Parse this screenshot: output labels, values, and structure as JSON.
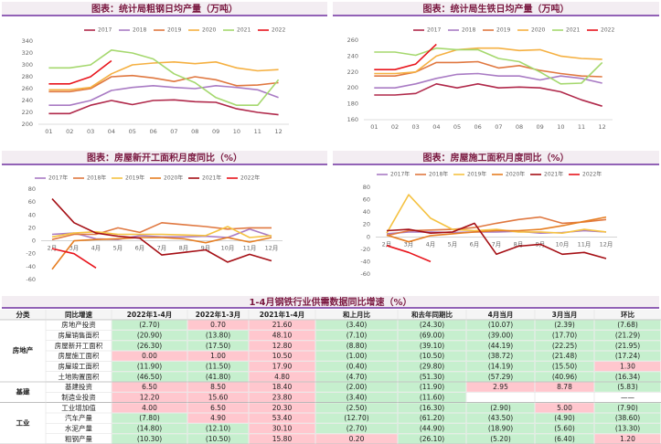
{
  "chart_data": [
    {
      "type": "line",
      "title": "图表：统计局粗钢日均产量（万吨）",
      "categories": [
        "01",
        "02",
        "03",
        "04",
        "05",
        "06",
        "07",
        "08",
        "09",
        "10",
        "11",
        "12"
      ],
      "ylim": [
        200,
        340
      ],
      "yticks": [
        200,
        220,
        240,
        260,
        280,
        300,
        320,
        340
      ],
      "series": [
        {
          "name": "2017",
          "color": "#b0284a",
          "values": [
            218,
            218,
            232,
            240,
            233,
            240,
            241,
            238,
            237,
            226,
            220,
            216
          ]
        },
        {
          "name": "2018",
          "color": "#a97bc4",
          "values": [
            232,
            232,
            240,
            257,
            262,
            265,
            262,
            260,
            265,
            262,
            258,
            245
          ]
        },
        {
          "name": "2019",
          "color": "#e07840",
          "values": [
            255,
            255,
            260,
            280,
            282,
            278,
            272,
            280,
            275,
            265,
            266,
            270
          ]
        },
        {
          "name": "2020",
          "color": "#f5b041",
          "values": [
            258,
            258,
            262,
            285,
            300,
            303,
            305,
            302,
            305,
            295,
            290,
            292
          ]
        },
        {
          "name": "2021",
          "color": "#a5d86e",
          "values": [
            295,
            295,
            300,
            325,
            320,
            310,
            285,
            270,
            245,
            232,
            232,
            275
          ]
        },
        {
          "name": "2022",
          "color": "#e8141c",
          "values": [
            268,
            268,
            280,
            307,
            null,
            null,
            null,
            null,
            null,
            null,
            null,
            null
          ]
        }
      ]
    },
    {
      "type": "line",
      "title": "图表：统计局生铁日均产量（万吨）",
      "categories": [
        "01",
        "02",
        "03",
        "04",
        "05",
        "06",
        "07",
        "08",
        "09",
        "10",
        "11",
        "12"
      ],
      "ylim": [
        160,
        260
      ],
      "yticks": [
        160,
        180,
        200,
        220,
        240,
        260
      ],
      "series": [
        {
          "name": "2017",
          "color": "#b0284a",
          "values": [
            191,
            191,
            193,
            205,
            200,
            205,
            200,
            201,
            200,
            195,
            185,
            177
          ]
        },
        {
          "name": "2018",
          "color": "#a97bc4",
          "values": [
            200,
            200,
            205,
            212,
            217,
            218,
            215,
            215,
            210,
            215,
            212,
            206
          ]
        },
        {
          "name": "2019",
          "color": "#e07840",
          "values": [
            215,
            215,
            220,
            232,
            232,
            233,
            225,
            228,
            222,
            218,
            215,
            214
          ]
        },
        {
          "name": "2020",
          "color": "#f5b041",
          "values": [
            218,
            218,
            220,
            240,
            248,
            250,
            250,
            247,
            248,
            240,
            237,
            236
          ]
        },
        {
          "name": "2021",
          "color": "#a5d86e",
          "values": [
            245,
            245,
            241,
            250,
            248,
            248,
            237,
            233,
            220,
            205,
            206,
            232
          ]
        },
        {
          "name": "2022",
          "color": "#e8141c",
          "values": [
            223,
            223,
            230,
            255,
            null,
            null,
            null,
            null,
            null,
            null,
            null,
            null
          ]
        }
      ]
    },
    {
      "type": "line",
      "title": "图表：房屋新开工面积月度同比（%）",
      "categories": [
        "2月",
        "3月",
        "4月",
        "5月",
        "6月",
        "7月",
        "8月",
        "9月",
        "10月",
        "11月",
        "12月"
      ],
      "ylim": [
        -60,
        80
      ],
      "yticks": [
        -60,
        -40,
        -20,
        0,
        20,
        40,
        60,
        80
      ],
      "series": [
        {
          "name": "2017年",
          "color": "#a97bc4",
          "values": [
            10,
            12,
            3,
            2,
            8,
            6,
            6,
            7,
            5,
            18,
            7
          ]
        },
        {
          "name": "2018年",
          "color": "#e07840",
          "values": [
            2,
            10,
            10,
            20,
            13,
            28,
            25,
            22,
            18,
            20,
            20
          ]
        },
        {
          "name": "2019年",
          "color": "#f5c242",
          "values": [
            6,
            12,
            14,
            10,
            10,
            10,
            9,
            8,
            22,
            5,
            8
          ]
        },
        {
          "name": "2020年",
          "color": "#e67e22",
          "values": [
            -44,
            0,
            2,
            3,
            5,
            5,
            3,
            -3,
            5,
            -2,
            5
          ]
        },
        {
          "name": "2021年",
          "color": "#a50f15",
          "values": [
            65,
            28,
            12,
            7,
            4,
            -22,
            -18,
            -14,
            -33,
            -21,
            -31
          ]
        },
        {
          "name": "2022年",
          "color": "#e8141c",
          "values": [
            -12,
            -20,
            -42,
            null,
            null,
            null,
            null,
            null,
            null,
            null,
            null
          ]
        }
      ]
    },
    {
      "type": "line",
      "title": "图表：房屋施工面积月度同比（%）",
      "categories": [
        "2月",
        "3月",
        "4月",
        "5月",
        "6月",
        "7月",
        "8月",
        "9月",
        "10月",
        "11月",
        "12月"
      ],
      "ylim": [
        -60,
        80
      ],
      "yticks": [
        -60,
        -40,
        -20,
        0,
        20,
        40,
        60,
        80
      ],
      "series": [
        {
          "name": "2017年",
          "color": "#a97bc4",
          "values": [
            5,
            8,
            8,
            7,
            8,
            8,
            9,
            6,
            7,
            10,
            8
          ]
        },
        {
          "name": "2018年",
          "color": "#e07840",
          "values": [
            2,
            10,
            11,
            12,
            15,
            22,
            28,
            32,
            22,
            24,
            28
          ]
        },
        {
          "name": "2019年",
          "color": "#f5c242",
          "values": [
            6,
            68,
            30,
            12,
            10,
            12,
            8,
            8,
            6,
            12,
            8
          ]
        },
        {
          "name": "2020年",
          "color": "#e67e22",
          "values": [
            3,
            -8,
            2,
            5,
            8,
            10,
            10,
            12,
            18,
            25,
            32
          ]
        },
        {
          "name": "2021年",
          "color": "#a50f15",
          "values": [
            10,
            12,
            6,
            8,
            22,
            -28,
            -15,
            -12,
            -28,
            -25,
            -35
          ]
        },
        {
          "name": "2022年",
          "color": "#e8141c",
          "values": [
            -14,
            -25,
            -40,
            null,
            null,
            null,
            null,
            null,
            null,
            null,
            null
          ]
        }
      ]
    }
  ],
  "table": {
    "title": "1-4月钢铁行业供需数据同比增速（%）",
    "header": [
      "分类",
      "同比增速",
      "2022年1-4月",
      "2022年1-3月",
      "2021年1-4月",
      "和上月比",
      "和去年同期比",
      "4月当月",
      "3月当月",
      "环比"
    ],
    "groups": [
      {
        "name": "房地产",
        "rows": [
          [
            "房地产投资",
            "(2.70)",
            "0.70",
            "21.60",
            "(3.40)",
            "(24.30)",
            "(10.07)",
            "(2.39)",
            "(7.68)"
          ],
          [
            "房屋销售面积",
            "(20.90)",
            "(13.80)",
            "48.10",
            "(7.10)",
            "(69.00)",
            "(39.00)",
            "(17.70)",
            "(21.29)"
          ],
          [
            "房屋新开工面积",
            "(26.30)",
            "(17.50)",
            "12.80",
            "(8.80)",
            "(39.10)",
            "(44.19)",
            "(22.25)",
            "(21.95)"
          ],
          [
            "房屋施工面积",
            "0.00",
            "1.00",
            "10.50",
            "(1.00)",
            "(10.50)",
            "(38.72)",
            "(21.48)",
            "(17.24)"
          ],
          [
            "房屋竣工面积",
            "(11.90)",
            "(11.50)",
            "17.90",
            "(0.40)",
            "(29.80)",
            "(14.19)",
            "(15.50)",
            "1.30"
          ],
          [
            "土地购置面积",
            "(46.50)",
            "(41.80)",
            "4.80",
            "(4.70)",
            "(51.30)",
            "(57.29)",
            "(40.96)",
            "(16.34)"
          ]
        ]
      },
      {
        "name": "基建",
        "rows": [
          [
            "基建投资",
            "6.50",
            "8.50",
            "18.40",
            "(2.00)",
            "(11.90)",
            "2.95",
            "8.78",
            "(5.83)"
          ],
          [
            "制造业投资",
            "12.20",
            "15.60",
            "23.80",
            "(3.40)",
            "(11.60)",
            null,
            null,
            "——"
          ]
        ]
      },
      {
        "name": "工业",
        "rows": [
          [
            "工业增加值",
            "4.00",
            "6.50",
            "20.30",
            "(2.50)",
            "(16.30)",
            "(2.90)",
            "5.00",
            "(7.90)"
          ],
          [
            "汽车产量",
            "(7.80)",
            "4.90",
            "53.40",
            "(12.70)",
            "(61.20)",
            "(43.50)",
            "(4.90)",
            "(38.60)"
          ],
          [
            "水泥产量",
            "(14.80)",
            "(12.10)",
            "30.10",
            "(2.70)",
            "(44.90)",
            "(18.90)",
            "(5.60)",
            "(13.30)"
          ],
          [
            "粗钢产量",
            "(10.30)",
            "(10.50)",
            "15.80",
            "0.20",
            "(26.10)",
            "(5.20)",
            "(6.40)",
            "1.20"
          ]
        ]
      }
    ]
  }
}
